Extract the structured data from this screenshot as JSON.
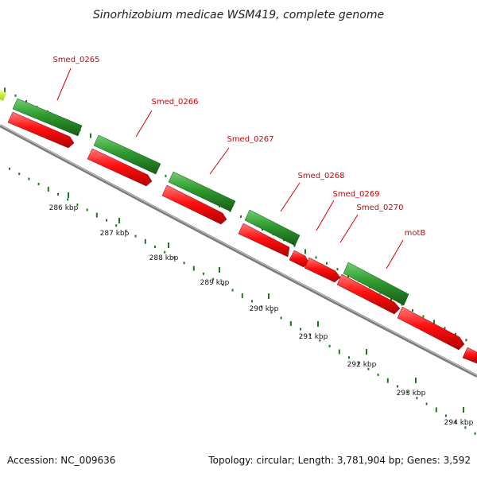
{
  "title": "Sinorhizobium medicae WSM419, complete genome",
  "footer": {
    "accession": "Accession: NC_009636",
    "topology": "Topology: circular; Length: 3,781,904 bp; Genes: 3,592"
  },
  "colors": {
    "gene_label": "#d40000",
    "forward_gene": "#2e8b2e",
    "reverse_gene": "#ff1a1a",
    "backbone": "#8c8c8c",
    "gc_dots": "#1a7a1a"
  },
  "tick_labels": [
    "286 kbp",
    "287 kbp",
    "288 kbp",
    "289 kbp",
    "290 kbp",
    "291 kbp",
    "292 kbp",
    "293 kbp",
    "294 kbp"
  ],
  "gene_labels": [
    "Smed_0265",
    "Smed_0266",
    "Smed_0267",
    "Smed_0268",
    "Smed_0269",
    "Smed_0270",
    "motB"
  ]
}
